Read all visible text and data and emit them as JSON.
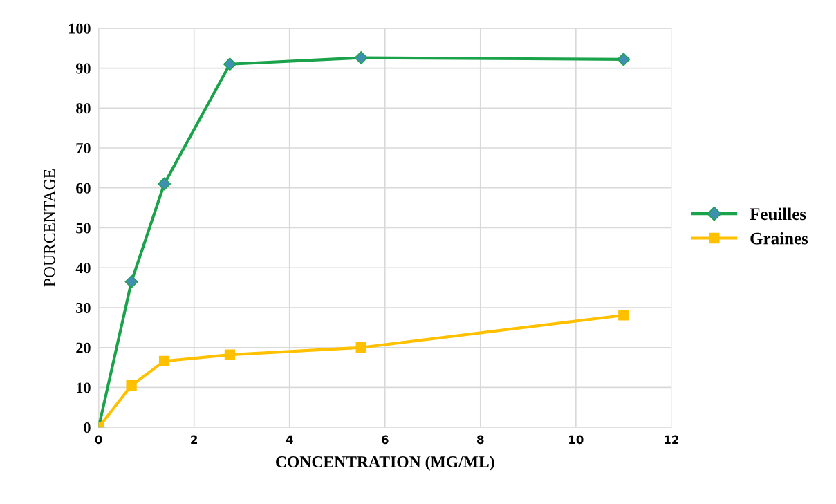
{
  "chart_data": {
    "type": "line",
    "xlabel": "CONCENTRATION (MG/ML)",
    "ylabel": "POURCENTAGE",
    "xlim": [
      0,
      12
    ],
    "xticks": [
      0,
      2,
      4,
      6,
      8,
      10,
      12
    ],
    "ylim": [
      0,
      100
    ],
    "yticks": [
      0,
      10,
      20,
      30,
      40,
      50,
      60,
      70,
      80,
      90,
      100
    ],
    "grid": true,
    "legend": "right",
    "series": [
      {
        "name": "Feuilles",
        "color": "#1aa34a",
        "marker": "diamond",
        "x": [
          0,
          0.6875,
          1.375,
          2.75,
          5.5,
          11
        ],
        "values": [
          0,
          36.5,
          61,
          91,
          92.6,
          92.2
        ]
      },
      {
        "name": "Graines",
        "color": "#ffc000",
        "marker": "square",
        "x": [
          0,
          0.6875,
          1.375,
          2.75,
          5.5,
          11
        ],
        "values": [
          0,
          10.5,
          16.6,
          18.2,
          20,
          28.1
        ]
      }
    ]
  }
}
